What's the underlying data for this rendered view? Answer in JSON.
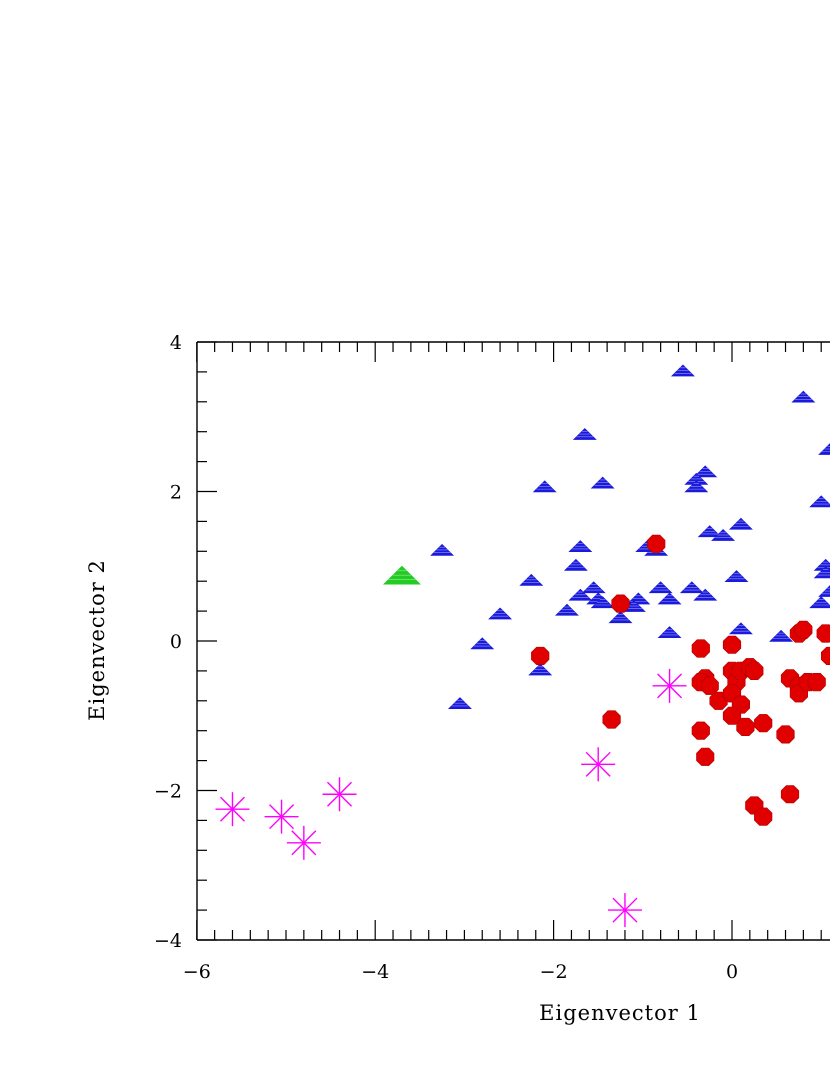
{
  "chart_data": {
    "type": "scatter",
    "title": "",
    "xlabel": "Eigenvector 1",
    "ylabel": "Eigenvector 2",
    "xlim": [
      -6,
      5.5
    ],
    "ylim": [
      -4,
      4
    ],
    "xticks": [
      -6,
      -4,
      -2,
      0
    ],
    "yticks": [
      -4,
      -2,
      0,
      2,
      4
    ],
    "grid": false,
    "legend": "none",
    "series": [
      {
        "marker": "triangle",
        "color": "#1a1adc",
        "points": [
          [
            -0.55,
            3.6
          ],
          [
            0.8,
            3.25
          ],
          [
            -1.65,
            2.75
          ],
          [
            -2.1,
            2.05
          ],
          [
            -1.45,
            2.1
          ],
          [
            -0.3,
            2.25
          ],
          [
            -0.4,
            2.15
          ],
          [
            -0.4,
            2.05
          ],
          [
            1.0,
            1.85
          ],
          [
            1.1,
            2.55
          ],
          [
            -3.25,
            1.2
          ],
          [
            -1.7,
            1.25
          ],
          [
            -0.95,
            1.25
          ],
          [
            -0.85,
            1.2
          ],
          [
            -0.25,
            1.45
          ],
          [
            -0.1,
            1.4
          ],
          [
            0.1,
            1.55
          ],
          [
            1.05,
            1.0
          ],
          [
            1.05,
            0.9
          ],
          [
            -2.25,
            0.8
          ],
          [
            -1.75,
            1.0
          ],
          [
            -1.7,
            0.6
          ],
          [
            -1.55,
            0.7
          ],
          [
            -1.5,
            0.55
          ],
          [
            -1.45,
            0.5
          ],
          [
            -1.85,
            0.4
          ],
          [
            -1.05,
            0.55
          ],
          [
            -1.1,
            0.45
          ],
          [
            -0.8,
            0.7
          ],
          [
            -0.7,
            0.55
          ],
          [
            -0.45,
            0.7
          ],
          [
            -0.3,
            0.6
          ],
          [
            0.05,
            0.85
          ],
          [
            -1.25,
            0.3
          ],
          [
            -2.6,
            0.35
          ],
          [
            -2.8,
            -0.05
          ],
          [
            -0.7,
            0.1
          ],
          [
            0.1,
            0.15
          ],
          [
            0.55,
            0.05
          ],
          [
            1.0,
            0.5
          ],
          [
            1.1,
            0.65
          ],
          [
            -2.15,
            -0.4
          ],
          [
            -3.05,
            -0.85
          ]
        ]
      },
      {
        "marker": "circle",
        "color": "#e00000",
        "points": [
          [
            -0.85,
            1.3
          ],
          [
            -1.25,
            0.5
          ],
          [
            -2.15,
            -0.2
          ],
          [
            -0.35,
            -0.1
          ],
          [
            -0.3,
            -0.5
          ],
          [
            -0.35,
            -0.55
          ],
          [
            -0.25,
            -0.6
          ],
          [
            -0.15,
            -0.8
          ],
          [
            0.0,
            -0.05
          ],
          [
            0.0,
            -0.4
          ],
          [
            0.05,
            -0.55
          ],
          [
            0.1,
            -0.4
          ],
          [
            0.2,
            -0.35
          ],
          [
            0.25,
            -0.4
          ],
          [
            0.0,
            -0.7
          ],
          [
            0.1,
            -0.85
          ],
          [
            0.0,
            -1.0
          ],
          [
            -0.35,
            -1.2
          ],
          [
            -0.3,
            -1.55
          ],
          [
            -1.35,
            -1.05
          ],
          [
            0.15,
            -1.15
          ],
          [
            0.35,
            -1.1
          ],
          [
            0.6,
            -1.25
          ],
          [
            0.65,
            -0.5
          ],
          [
            0.75,
            -0.6
          ],
          [
            0.75,
            -0.7
          ],
          [
            0.85,
            -0.55
          ],
          [
            0.95,
            -0.55
          ],
          [
            0.75,
            0.1
          ],
          [
            0.8,
            0.15
          ],
          [
            1.05,
            0.1
          ],
          [
            1.1,
            -0.2
          ],
          [
            0.65,
            -2.05
          ],
          [
            0.25,
            -2.2
          ],
          [
            0.35,
            -2.35
          ]
        ]
      },
      {
        "marker": "asterisk",
        "color": "#ff00ff",
        "points": [
          [
            -5.6,
            -2.25
          ],
          [
            -5.05,
            -2.35
          ],
          [
            -4.8,
            -2.7
          ],
          [
            -4.4,
            -2.05
          ],
          [
            -1.5,
            -1.65
          ],
          [
            -0.7,
            -0.6
          ],
          [
            -1.2,
            -3.6
          ]
        ]
      },
      {
        "marker": "triangle-large",
        "color": "#22cc22",
        "points": [
          [
            -3.7,
            0.85
          ]
        ]
      }
    ]
  }
}
